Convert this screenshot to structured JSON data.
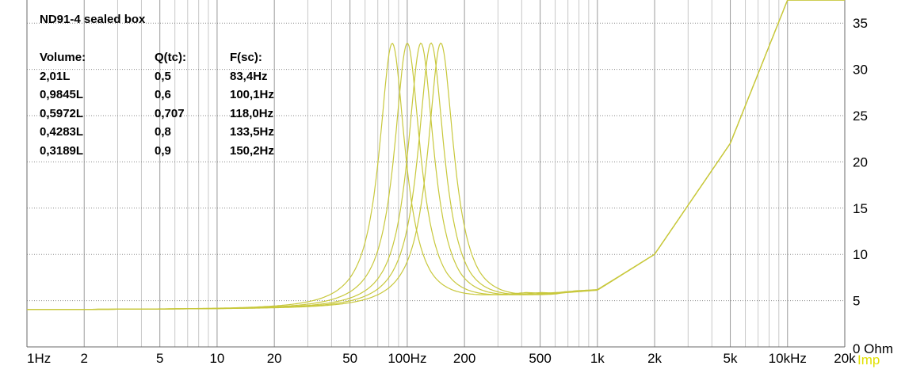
{
  "title": "ND91-4 sealed box",
  "legend": {
    "headers": {
      "volume": "Volume:",
      "q": "Q(tc):",
      "f": "F(sc):"
    },
    "rows": [
      {
        "volume": "2,01L",
        "q": "0,5",
        "f": "83,4Hz"
      },
      {
        "volume": "0,9845L",
        "q": "0,6",
        "f": "100,1Hz"
      },
      {
        "volume": "0,5972L",
        "q": "0,707",
        "f": "118,0Hz"
      },
      {
        "volume": "0,4283L",
        "q": "0,8",
        "f": "133,5Hz"
      },
      {
        "volume": "0,3189L",
        "q": "0,9",
        "f": "150,2Hz"
      }
    ]
  },
  "colors": {
    "curve": "#c8c83c",
    "grid_major": "#9a9a9a",
    "grid_minor": "#c8c8c8",
    "imp_label": "#e0e000",
    "text": "#000000"
  },
  "chart_data": {
    "type": "line",
    "xscale": "log",
    "xlim": [
      1,
      20000
    ],
    "ylim": [
      0,
      37.5
    ],
    "x_ticks": [
      {
        "v": 1,
        "label": "1Hz"
      },
      {
        "v": 2,
        "label": "2"
      },
      {
        "v": 5,
        "label": "5"
      },
      {
        "v": 10,
        "label": "10"
      },
      {
        "v": 20,
        "label": "20"
      },
      {
        "v": 50,
        "label": "50"
      },
      {
        "v": 100,
        "label": "100Hz"
      },
      {
        "v": 200,
        "label": "200"
      },
      {
        "v": 500,
        "label": "500"
      },
      {
        "v": 1000,
        "label": "1k"
      },
      {
        "v": 2000,
        "label": "2k"
      },
      {
        "v": 5000,
        "label": "5k"
      },
      {
        "v": 10000,
        "label": "10kHz"
      },
      {
        "v": 20000,
        "label": "20k"
      }
    ],
    "y_ticks": [
      {
        "v": 0,
        "label": "0 Ohm"
      },
      {
        "v": 5,
        "label": "5"
      },
      {
        "v": 10,
        "label": "10"
      },
      {
        "v": 15,
        "label": "15"
      },
      {
        "v": 20,
        "label": "20"
      },
      {
        "v": 25,
        "label": "25"
      },
      {
        "v": 30,
        "label": "30"
      },
      {
        "v": 35,
        "label": "35"
      }
    ],
    "y_unit_label": "Imp",
    "series": [
      {
        "name": "2,01L",
        "fc": 83.4,
        "peak": 32.6
      },
      {
        "name": "0,9845L",
        "fc": 100.1,
        "peak": 32.6
      },
      {
        "name": "0,5972L",
        "fc": 118.0,
        "peak": 32.6
      },
      {
        "name": "0,4283L",
        "fc": 133.5,
        "peak": 32.6
      },
      {
        "name": "0,3189L",
        "fc": 150.2,
        "peak": 32.6
      }
    ],
    "shared": {
      "re": 4.0,
      "min_point": {
        "x": 600,
        "y": 5.7
      },
      "points_high": [
        {
          "x": 1000,
          "y": 6.1
        },
        {
          "x": 2000,
          "y": 10.0
        },
        {
          "x": 5000,
          "y": 22.0
        },
        {
          "x": 10000,
          "y": 37.5
        }
      ]
    }
  }
}
